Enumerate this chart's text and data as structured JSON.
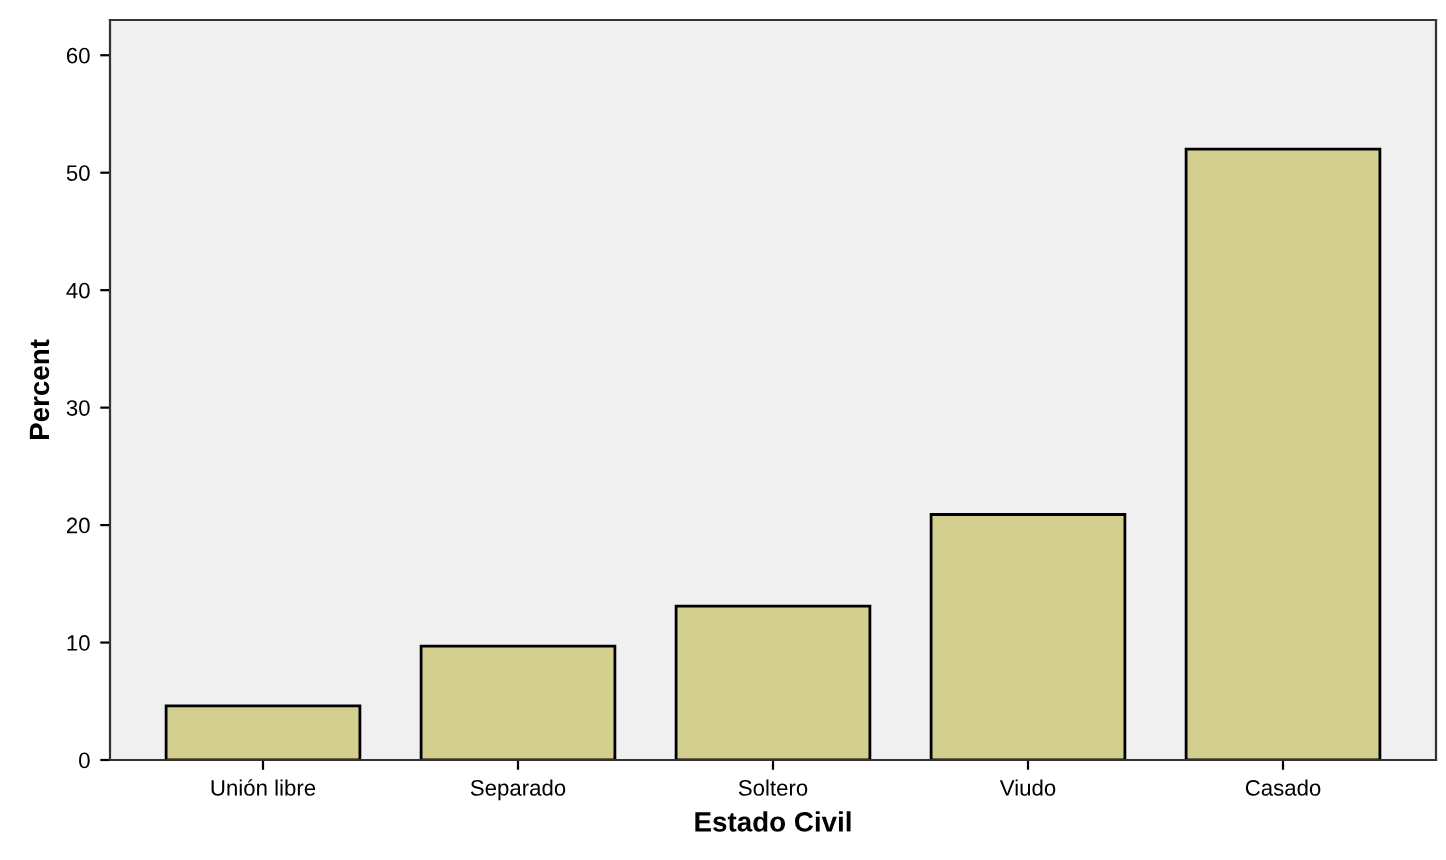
{
  "chart_data": {
    "type": "bar",
    "xlabel": "Estado Civil",
    "ylabel": "Percent",
    "categories": [
      "Unión libre",
      "Separado",
      "Soltero",
      "Viudo",
      "Casado"
    ],
    "values": [
      4.6,
      9.7,
      13.1,
      20.9,
      52.0
    ],
    "color": "#d3cf8e",
    "ylim": [
      0,
      63
    ],
    "yticks": [
      0,
      10,
      20,
      30,
      40,
      50,
      60
    ],
    "grid": false,
    "legend": false
  }
}
